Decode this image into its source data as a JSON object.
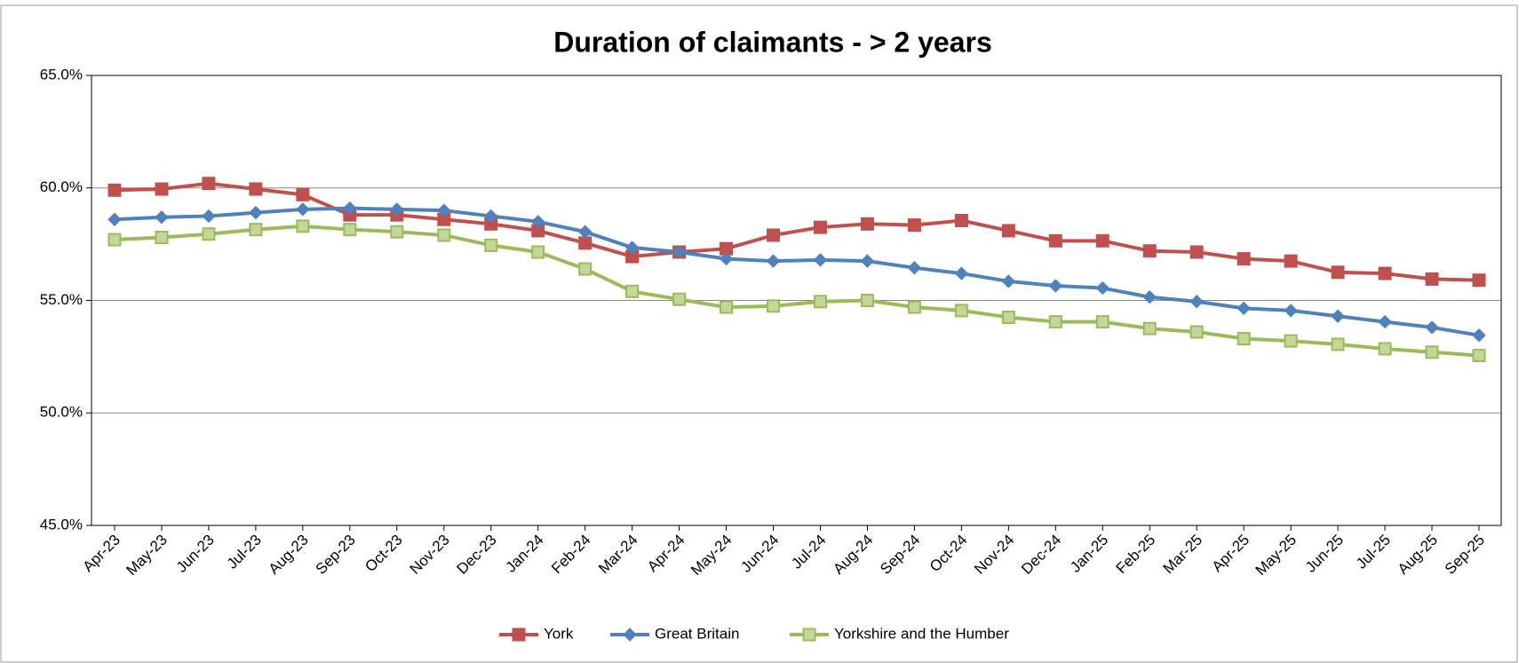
{
  "chart_data": {
    "type": "line",
    "title": "Duration of claimants - > 2 years",
    "categories": [
      "Apr-23",
      "May-23",
      "Jun-23",
      "Jul-23",
      "Aug-23",
      "Sep-23",
      "Oct-23",
      "Nov-23",
      "Dec-23",
      "Jan-24",
      "Feb-24",
      "Mar-24",
      "Apr-24",
      "May-24",
      "Jun-24",
      "Jul-24",
      "Aug-24",
      "Sep-24",
      "Oct-24",
      "Nov-24",
      "Dec-24",
      "Jan-25",
      "Feb-25",
      "Mar-25",
      "Apr-25",
      "May-25",
      "Jun-25",
      "Jul-25",
      "Aug-25",
      "Sep-25"
    ],
    "series": [
      {
        "name": "York",
        "color": "#c0504d",
        "marker": "square",
        "values": [
          59.9,
          59.95,
          60.2,
          59.95,
          59.7,
          58.8,
          58.8,
          58.6,
          58.4,
          58.1,
          57.55,
          56.95,
          57.15,
          57.3,
          57.9,
          58.25,
          58.4,
          58.35,
          58.55,
          58.1,
          57.65,
          57.65,
          57.2,
          57.15,
          56.85,
          56.75,
          56.25,
          56.2,
          55.95,
          55.9
        ]
      },
      {
        "name": "Great Britain",
        "color": "#4f81bd",
        "marker": "diamond",
        "values": [
          58.6,
          58.7,
          58.75,
          58.9,
          59.05,
          59.1,
          59.05,
          59.0,
          58.75,
          58.5,
          58.05,
          57.35,
          57.15,
          56.85,
          56.75,
          56.8,
          56.75,
          56.45,
          56.2,
          55.85,
          55.65,
          55.55,
          55.15,
          54.95,
          54.65,
          54.55,
          54.3,
          54.05,
          53.8,
          53.45
        ]
      },
      {
        "name": "Yorkshire and the Humber",
        "color": "#9bbb59",
        "marker": "square",
        "values": [
          57.7,
          57.8,
          57.95,
          58.15,
          58.3,
          58.15,
          58.05,
          57.9,
          57.45,
          57.15,
          56.4,
          55.4,
          55.05,
          54.7,
          54.75,
          54.95,
          55.0,
          54.7,
          54.55,
          54.25,
          54.05,
          54.05,
          53.75,
          53.6,
          53.3,
          53.2,
          53.05,
          52.85,
          52.7,
          52.55
        ]
      }
    ],
    "ylim": [
      45,
      65
    ],
    "yticks": [
      {
        "value": 45,
        "label": "45.0%"
      },
      {
        "value": 50,
        "label": "50.0%"
      },
      {
        "value": 55,
        "label": "55.0%"
      },
      {
        "value": 60,
        "label": "60.0%"
      },
      {
        "value": 65,
        "label": "65.0%"
      }
    ],
    "grid": true,
    "legend": "bottom"
  }
}
